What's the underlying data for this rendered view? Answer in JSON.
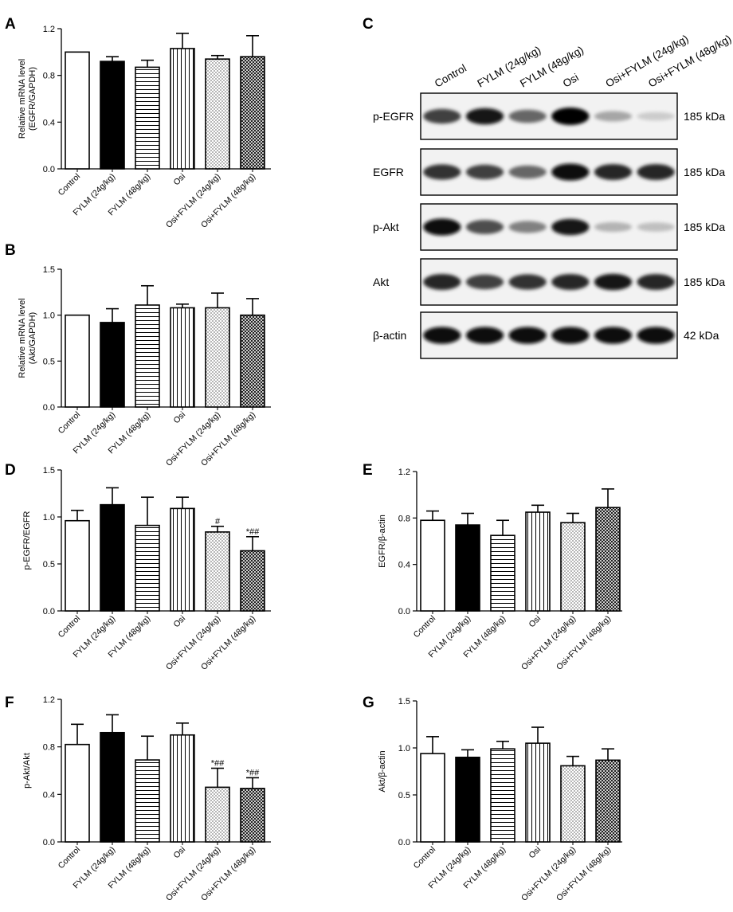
{
  "groups": [
    "Control",
    "FYLM (24g/kg)",
    "FYLM (48g/kg)",
    "Osi",
    "Osi+FYLM (24g/kg)",
    "Osi+FYLM (48g/kg)"
  ],
  "chart_data": [
    {
      "panel": "A",
      "type": "bar",
      "categories": [
        "Control",
        "FYLM (24g/kg)",
        "FYLM (48g/kg)",
        "Osi",
        "Osi+FYLM (24g/kg)",
        "Osi+FYLM (48g/kg)"
      ],
      "values": [
        1.0,
        0.92,
        0.87,
        1.03,
        0.94,
        0.96
      ],
      "errors": [
        0.0,
        0.04,
        0.06,
        0.13,
        0.03,
        0.18
      ],
      "annotations": [
        "",
        "",
        "",
        "",
        "",
        ""
      ],
      "ylabel": "Relative mRNA level (EGFR/GAPDH)",
      "ylim": [
        0,
        1.2
      ],
      "yticks": [
        "0.0",
        "0.4",
        "0.8",
        "1.2"
      ]
    },
    {
      "panel": "B",
      "type": "bar",
      "categories": [
        "Control",
        "FYLM (24g/kg)",
        "FYLM (48g/kg)",
        "Osi",
        "Osi+FYLM (24g/kg)",
        "Osi+FYLM (48g/kg)"
      ],
      "values": [
        1.0,
        0.92,
        1.11,
        1.08,
        1.08,
        1.0
      ],
      "errors": [
        0.0,
        0.15,
        0.21,
        0.04,
        0.16,
        0.18
      ],
      "annotations": [
        "",
        "",
        "",
        "",
        "",
        ""
      ],
      "ylabel": "Relative mRNA level (Akt/GAPDH)",
      "ylim": [
        0,
        1.5
      ],
      "yticks": [
        "0.0",
        "0.5",
        "1.0",
        "1.5"
      ]
    },
    {
      "panel": "D",
      "type": "bar",
      "categories": [
        "Control",
        "FYLM (24g/kg)",
        "FYLM (48g/kg)",
        "Osi",
        "Osi+FYLM (24g/kg)",
        "Osi+FYLM (48g/kg)"
      ],
      "values": [
        0.96,
        1.13,
        0.91,
        1.09,
        0.84,
        0.64
      ],
      "errors": [
        0.11,
        0.18,
        0.3,
        0.12,
        0.06,
        0.15
      ],
      "annotations": [
        "",
        "",
        "",
        "",
        "#",
        "*##"
      ],
      "ylabel": "p-EGFR/EGFR",
      "ylim": [
        0,
        1.5
      ],
      "yticks": [
        "0.0",
        "0.5",
        "1.0",
        "1.5"
      ]
    },
    {
      "panel": "E",
      "type": "bar",
      "categories": [
        "Control",
        "FYLM (24g/kg)",
        "FYLM (48g/kg)",
        "Osi",
        "Osi+FYLM (24g/kg)",
        "Osi+FYLM (48g/kg)"
      ],
      "values": [
        0.78,
        0.74,
        0.65,
        0.85,
        0.76,
        0.89
      ],
      "errors": [
        0.08,
        0.1,
        0.13,
        0.06,
        0.08,
        0.16
      ],
      "annotations": [
        "",
        "",
        "",
        "",
        "",
        ""
      ],
      "ylabel": "EGFR/β-actin",
      "ylim": [
        0,
        1.2
      ],
      "yticks": [
        "0.0",
        "0.4",
        "0.8",
        "1.2"
      ]
    },
    {
      "panel": "F",
      "type": "bar",
      "categories": [
        "Control",
        "FYLM (24g/kg)",
        "FYLM (48g/kg)",
        "Osi",
        "Osi+FYLM (24g/kg)",
        "Osi+FYLM (48g/kg)"
      ],
      "values": [
        0.82,
        0.92,
        0.69,
        0.9,
        0.46,
        0.45
      ],
      "errors": [
        0.17,
        0.15,
        0.2,
        0.1,
        0.16,
        0.09
      ],
      "annotations": [
        "",
        "",
        "",
        "",
        "*##",
        "*##"
      ],
      "ylabel": "p-Akt/Akt",
      "ylim": [
        0,
        1.2
      ],
      "yticks": [
        "0.0",
        "0.4",
        "0.8",
        "1.2"
      ]
    },
    {
      "panel": "G",
      "type": "bar",
      "categories": [
        "Control",
        "FYLM (24g/kg)",
        "FYLM (48g/kg)",
        "Osi",
        "Osi+FYLM (24g/kg)",
        "Osi+FYLM (48g/kg)"
      ],
      "values": [
        0.94,
        0.9,
        0.99,
        1.05,
        0.81,
        0.87
      ],
      "errors": [
        0.18,
        0.08,
        0.08,
        0.17,
        0.1,
        0.12
      ],
      "annotations": [
        "",
        "",
        "",
        "",
        "",
        ""
      ],
      "ylabel": "Akt/β-actin",
      "ylim": [
        0,
        1.5
      ],
      "yticks": [
        "0.0",
        "0.5",
        "1.0",
        "1.5"
      ]
    }
  ],
  "western_blot": {
    "panel": "C",
    "lanes": [
      "Control",
      "FYLM (24g/kg)",
      "FYLM (48g/kg)",
      "Osi",
      "Osi+FYLM (24g/kg)",
      "Osi+FYLM (48g/kg)"
    ],
    "rows": [
      {
        "protein": "p-EGFR",
        "size": "185 kDa",
        "intensity": [
          0.75,
          0.9,
          0.6,
          1.0,
          0.35,
          0.2
        ]
      },
      {
        "protein": "EGFR",
        "size": "185 kDa",
        "intensity": [
          0.8,
          0.75,
          0.6,
          0.95,
          0.85,
          0.85
        ]
      },
      {
        "protein": "p-Akt",
        "size": "185 kDa",
        "intensity": [
          0.95,
          0.7,
          0.5,
          0.9,
          0.3,
          0.25
        ]
      },
      {
        "protein": "Akt",
        "size": "185 kDa",
        "intensity": [
          0.85,
          0.75,
          0.8,
          0.85,
          0.9,
          0.85
        ]
      },
      {
        "protein": "β-actin",
        "size": "42 kDa",
        "intensity": [
          0.95,
          0.95,
          0.95,
          0.95,
          0.95,
          0.95
        ]
      }
    ]
  }
}
